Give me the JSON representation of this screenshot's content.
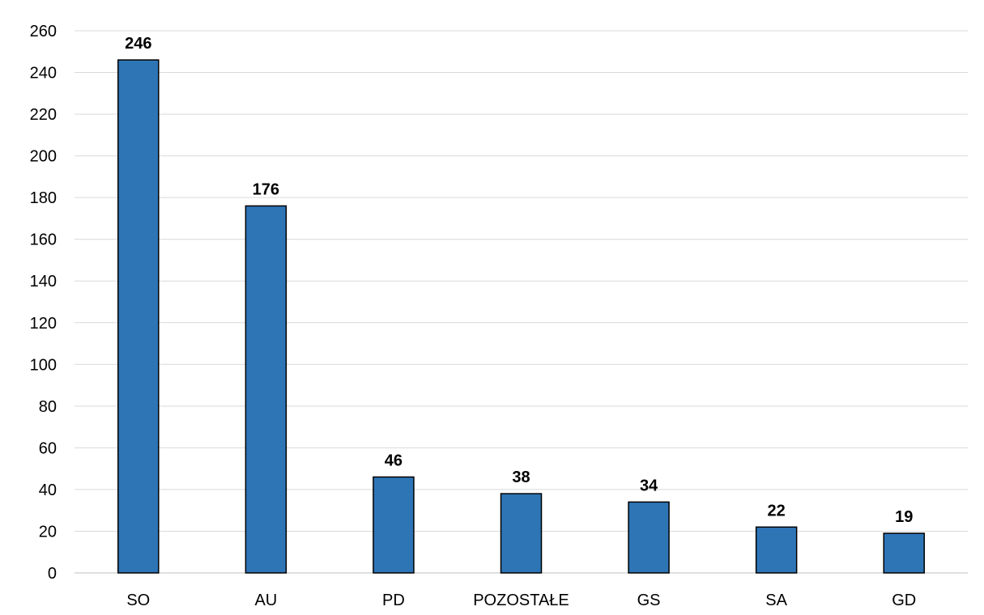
{
  "chart_data": {
    "type": "bar",
    "categories": [
      "SO",
      "AU",
      "PD",
      "POZOSTAŁE",
      "GS",
      "SA",
      "GD"
    ],
    "values": [
      246,
      176,
      46,
      38,
      34,
      22,
      19
    ],
    "data_labels": [
      "246",
      "176",
      "46",
      "38",
      "34",
      "22",
      "19"
    ],
    "title": "",
    "xlabel": "",
    "ylabel": "",
    "ylim": [
      0,
      260
    ],
    "yticks": [
      0,
      20,
      40,
      60,
      80,
      100,
      120,
      140,
      160,
      180,
      200,
      220,
      240,
      260
    ],
    "grid": true,
    "legend": "none",
    "colors": {
      "bar": "#2e75b6",
      "bar_border": "#000000",
      "grid": "#d9d9d9"
    }
  }
}
